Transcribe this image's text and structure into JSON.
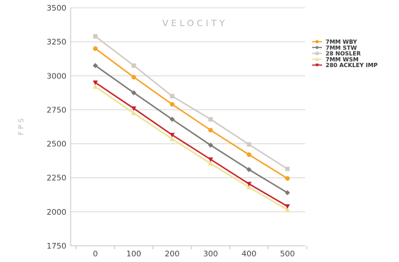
{
  "chart_data": {
    "type": "line",
    "title": "VELOCITY",
    "xlabel": "",
    "ylabel": "FPS",
    "x": [
      0,
      100,
      200,
      300,
      400,
      500
    ],
    "xlim": [
      0,
      500
    ],
    "ylim": [
      1750,
      3500
    ],
    "yticks": [
      1750,
      2000,
      2250,
      2500,
      2750,
      3000,
      3250,
      3500
    ],
    "grid": "horizontal",
    "legend": "right",
    "series": [
      {
        "name": "7MM WBY",
        "color": "#f7a021",
        "marker": "circle",
        "values": [
          3200,
          2990,
          2790,
          2600,
          2420,
          2245
        ]
      },
      {
        "name": "7MM STW",
        "color": "#7a7774",
        "marker": "diamond",
        "values": [
          3075,
          2875,
          2680,
          2490,
          2310,
          2140
        ]
      },
      {
        "name": "28 NOSLER",
        "color": "#cfc9c2",
        "marker": "square",
        "values": [
          3290,
          3075,
          2850,
          2680,
          2495,
          2315
        ]
      },
      {
        "name": "7MM WSM",
        "color": "#ece28f",
        "marker": "triangle-up",
        "values": [
          2920,
          2725,
          2535,
          2355,
          2180,
          2015
        ]
      },
      {
        "name": "280 ACKLEY IMP",
        "color": "#c8202a",
        "marker": "triangle-down",
        "values": [
          2950,
          2760,
          2565,
          2385,
          2205,
          2040
        ]
      }
    ]
  }
}
